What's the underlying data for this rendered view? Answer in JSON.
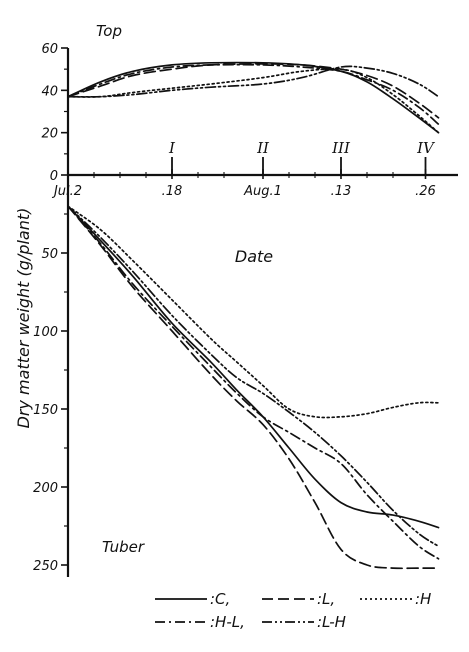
{
  "chart_data": {
    "type": "line",
    "ylabel": "Dry matter weight  (g/plant)",
    "xlabel": "Date",
    "x_ticks": [
      {
        "x": 0,
        "label": "Jul.2"
      },
      {
        "x": 16,
        "label": ".18"
      },
      {
        "x": 30,
        "label": "Aug.1"
      },
      {
        "x": 42,
        "label": ".13"
      },
      {
        "x": 55,
        "label": ".26"
      }
    ],
    "stage_marks": [
      {
        "x": 16,
        "label": "I"
      },
      {
        "x": 30,
        "label": "II"
      },
      {
        "x": 42,
        "label": "III"
      },
      {
        "x": 55,
        "label": "IV"
      }
    ],
    "panels": [
      {
        "name": "Top",
        "ylim": [
          0,
          60
        ],
        "yticks": [
          0,
          20,
          40,
          60
        ],
        "series": [
          {
            "name": "C",
            "style": "solid",
            "x": [
              0,
              5,
              10,
              16,
              22,
              30,
              36,
              42,
              46,
              50,
              54,
              57
            ],
            "y": [
              37,
              44,
              49,
              52,
              53,
              53,
              52,
              49,
              44,
              36,
              27,
              20
            ]
          },
          {
            "name": "L",
            "style": "dashed",
            "x": [
              0,
              5,
              10,
              16,
              22,
              30,
              36,
              42,
              46,
              50,
              54,
              57
            ],
            "y": [
              37,
              42,
              47,
              50,
              52,
              52.5,
              52,
              50,
              47,
              42,
              34,
              27
            ]
          },
          {
            "name": "H",
            "style": "dotted",
            "x": [
              0,
              5,
              10,
              16,
              22,
              30,
              36,
              42,
              46,
              50,
              54,
              57
            ],
            "y": [
              37,
              37,
              39,
              41,
              43,
              46,
              49,
              50,
              46,
              38,
              28,
              20
            ]
          },
          {
            "name": "H-L",
            "style": "dashdot",
            "x": [
              0,
              5,
              10,
              16,
              22,
              30,
              36,
              42,
              46,
              50,
              54,
              57
            ],
            "y": [
              37,
              43,
              48,
              51,
              52,
              52,
              51,
              49,
              45,
              40,
              32,
              24
            ]
          },
          {
            "name": "L-H",
            "style": "dashdotdot",
            "x": [
              0,
              5,
              10,
              16,
              22,
              30,
              36,
              42,
              46,
              50,
              54,
              57
            ],
            "y": [
              37,
              37,
              38,
              40,
              41.5,
              43,
              46,
              51,
              50.5,
              48,
              43,
              37
            ]
          }
        ]
      },
      {
        "name": "Tuber",
        "ylim": [
          0,
          260
        ],
        "yticks": [
          50,
          100,
          150,
          200,
          250
        ],
        "inverted": true,
        "series": [
          {
            "name": "C",
            "style": "solid",
            "x": [
              0,
              5,
              10,
              16,
              22,
              26,
              30,
              34,
              38,
              42,
              46,
              50,
              54,
              57
            ],
            "y": [
              20,
              42,
              65,
              95,
              120,
              138,
              155,
              175,
              195,
              210,
              216,
              218,
              222,
              226
            ]
          },
          {
            "name": "L",
            "style": "dashed",
            "x": [
              0,
              5,
              10,
              16,
              22,
              26,
              30,
              34,
              38,
              42,
              46,
              50,
              54,
              57
            ],
            "y": [
              20,
              45,
              72,
              100,
              128,
              145,
              160,
              182,
              210,
              240,
              250,
              252,
              252,
              252
            ]
          },
          {
            "name": "H",
            "style": "dotted",
            "x": [
              0,
              5,
              10,
              16,
              22,
              26,
              30,
              34,
              38,
              42,
              46,
              50,
              54,
              57
            ],
            "y": [
              20,
              35,
              55,
              80,
              105,
              120,
              135,
              150,
              155,
              155,
              153,
              149,
              146,
              146
            ]
          },
          {
            "name": "H-L",
            "style": "dashdot",
            "x": [
              0,
              5,
              10,
              16,
              22,
              26,
              30,
              34,
              38,
              42,
              46,
              50,
              54,
              57
            ],
            "y": [
              20,
              44,
              70,
              97,
              123,
              140,
              155,
              165,
              175,
              185,
              205,
              222,
              238,
              246
            ]
          },
          {
            "name": "L-H",
            "style": "dashdotdot",
            "x": [
              0,
              5,
              10,
              16,
              22,
              26,
              30,
              34,
              38,
              42,
              46,
              50,
              54,
              57
            ],
            "y": [
              20,
              40,
              62,
              90,
              115,
              130,
              140,
              152,
              165,
              180,
              197,
              215,
              230,
              238
            ]
          }
        ]
      }
    ],
    "legend": {
      "placement": "bottom",
      "rows": [
        [
          {
            "series": "C",
            "text": ":C,"
          },
          {
            "series": "L",
            "text": ":L,"
          },
          {
            "series": "H",
            "text": ":H"
          }
        ],
        [
          {
            "series": "H-L",
            "text": ":H-L,"
          },
          {
            "series": "L-H",
            "text": ":L-H"
          }
        ]
      ]
    }
  }
}
